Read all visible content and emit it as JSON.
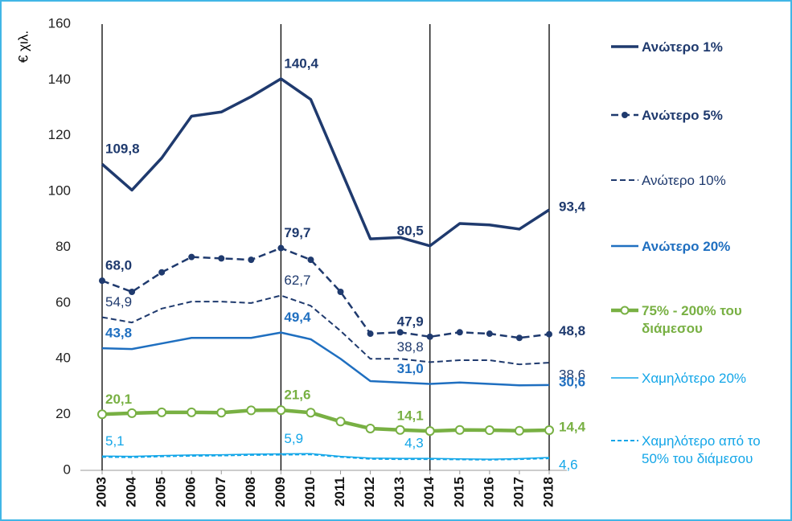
{
  "chart_data": {
    "type": "line",
    "y_label": "€ χιλ.",
    "x": [
      2003,
      2004,
      2005,
      2006,
      2007,
      2008,
      2009,
      2010,
      2011,
      2012,
      2013,
      2014,
      2015,
      2016,
      2017,
      2018
    ],
    "xlim": [
      2003,
      2018
    ],
    "ylim": [
      0,
      160
    ],
    "yticks": [
      0,
      20,
      40,
      60,
      80,
      100,
      120,
      140,
      160
    ],
    "vlines": [
      2003,
      2009,
      2014,
      2018
    ],
    "series": [
      {
        "name": "Ανώτερο 1%",
        "color": "#1f3a6e",
        "width": 3.5,
        "dash": "none",
        "marker": false,
        "bold": true,
        "values": [
          109.8,
          100.5,
          112,
          127,
          128.5,
          134,
          140.4,
          133,
          108,
          83,
          83.5,
          80.5,
          88.5,
          88,
          86.5,
          93.4
        ],
        "value_labels": [
          "109,8",
          null,
          null,
          null,
          null,
          null,
          "140,4",
          null,
          null,
          null,
          null,
          "80,5",
          null,
          null,
          null,
          "93,4"
        ]
      },
      {
        "name": "Ανώτερο 5%",
        "color": "#1f3a6e",
        "width": 2.5,
        "dash": "9 5",
        "marker": true,
        "bold": true,
        "values": [
          68.0,
          64,
          71,
          76.5,
          76,
          75.5,
          79.7,
          75.5,
          64,
          49,
          49.5,
          47.9,
          49.5,
          49,
          47.5,
          48.8
        ],
        "value_labels": [
          "68,0",
          null,
          null,
          null,
          null,
          null,
          "79,7",
          null,
          null,
          null,
          null,
          "47,9",
          null,
          null,
          null,
          "48,8"
        ]
      },
      {
        "name": "Ανώτερο 10%",
        "color": "#1f3a6e",
        "width": 2,
        "dash": "7 4",
        "marker": false,
        "bold": false,
        "values": [
          54.9,
          53,
          58,
          60.5,
          60.5,
          60,
          62.7,
          59,
          50,
          40,
          40,
          38.8,
          39.5,
          39.5,
          38,
          38.6
        ],
        "value_labels": [
          "54,9",
          null,
          null,
          null,
          null,
          null,
          "62,7",
          null,
          null,
          null,
          null,
          "38,8",
          null,
          null,
          null,
          "38,6"
        ]
      },
      {
        "name": "Ανώτερο 20%",
        "color": "#1f6fc0",
        "width": 2.5,
        "dash": "none",
        "marker": false,
        "bold": true,
        "values": [
          43.8,
          43.5,
          45.5,
          47.5,
          47.5,
          47.5,
          49.4,
          47,
          40,
          32,
          31.5,
          31.0,
          31.5,
          31,
          30.5,
          30.6
        ],
        "value_labels": [
          "43,8",
          null,
          null,
          null,
          null,
          null,
          "49,4",
          null,
          null,
          null,
          null,
          "31,0",
          null,
          null,
          null,
          "30,6"
        ]
      },
      {
        "name": "75% - 200% του διάμεσου",
        "color": "#78b043",
        "width": 4.5,
        "dash": "none",
        "marker": true,
        "bold": true,
        "values": [
          20.1,
          20.5,
          20.8,
          20.8,
          20.7,
          21.5,
          21.6,
          20.7,
          17.5,
          15,
          14.5,
          14.1,
          14.5,
          14.4,
          14.2,
          14.4
        ],
        "value_labels": [
          "20,1",
          null,
          null,
          null,
          null,
          null,
          "21,6",
          null,
          null,
          null,
          null,
          "14,1",
          null,
          null,
          null,
          "14,4"
        ]
      },
      {
        "name": "Χαμηλότερο 20%",
        "color": "#13a6e8",
        "width": 1.5,
        "dash": "none",
        "marker": false,
        "bold": false,
        "values": [
          5.1,
          5,
          5.3,
          5.5,
          5.6,
          5.8,
          5.9,
          6,
          5,
          4.4,
          4.3,
          4.3,
          4.1,
          4,
          4.2,
          4.6
        ],
        "value_labels": [
          "5,1",
          null,
          null,
          null,
          null,
          null,
          "5,9",
          null,
          null,
          null,
          null,
          "4,3",
          null,
          null,
          null,
          "4,6"
        ]
      },
      {
        "name": "Χαμηλότερο από το 50% του διάμεσου",
        "color": "#13a6e8",
        "width": 2,
        "dash": "5 3",
        "marker": false,
        "bold": false,
        "values": [
          4.8,
          4.7,
          5,
          5.2,
          5.3,
          5.5,
          5.6,
          5.7,
          4.8,
          4.1,
          4.0,
          4.0,
          3.9,
          3.8,
          4.0,
          4.3
        ]
      }
    ]
  }
}
